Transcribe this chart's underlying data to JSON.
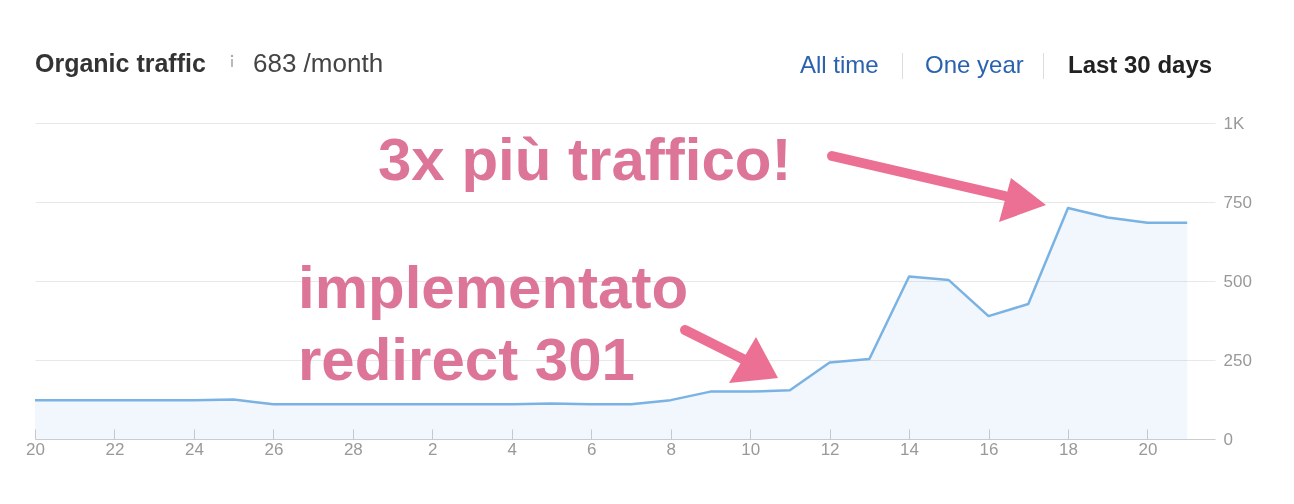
{
  "chart_data": {
    "type": "area",
    "title": "Organic traffic",
    "subtitle": "683 /month",
    "annotations": [
      "All time",
      "One year",
      "Last 30 days",
      "3x più traffico!",
      "implementato redirect 301"
    ],
    "categories": [
      "20",
      null,
      "22",
      null,
      "24",
      null,
      "26",
      null,
      "28",
      null,
      "2",
      null,
      "4",
      null,
      "6",
      null,
      "8",
      null,
      "10",
      null,
      "12",
      null,
      "14",
      null,
      "16",
      null,
      "18",
      null,
      "20",
      null
    ],
    "series": [
      {
        "color": "#7ab3e3",
        "values": [
          123,
          123,
          123,
          123,
          123,
          125,
          110,
          110,
          110,
          110,
          110,
          110,
          110,
          112,
          110,
          110,
          123,
          150,
          150,
          154,
          242,
          253,
          514,
          503,
          389,
          427,
          731,
          701,
          684,
          684
        ]
      }
    ],
    "ylim": [
      0,
      1000
    ],
    "yticks": [
      0,
      250,
      500,
      750,
      {
        "value": 1000,
        "label": "1K"
      }
    ],
    "grid": "y"
  }
}
